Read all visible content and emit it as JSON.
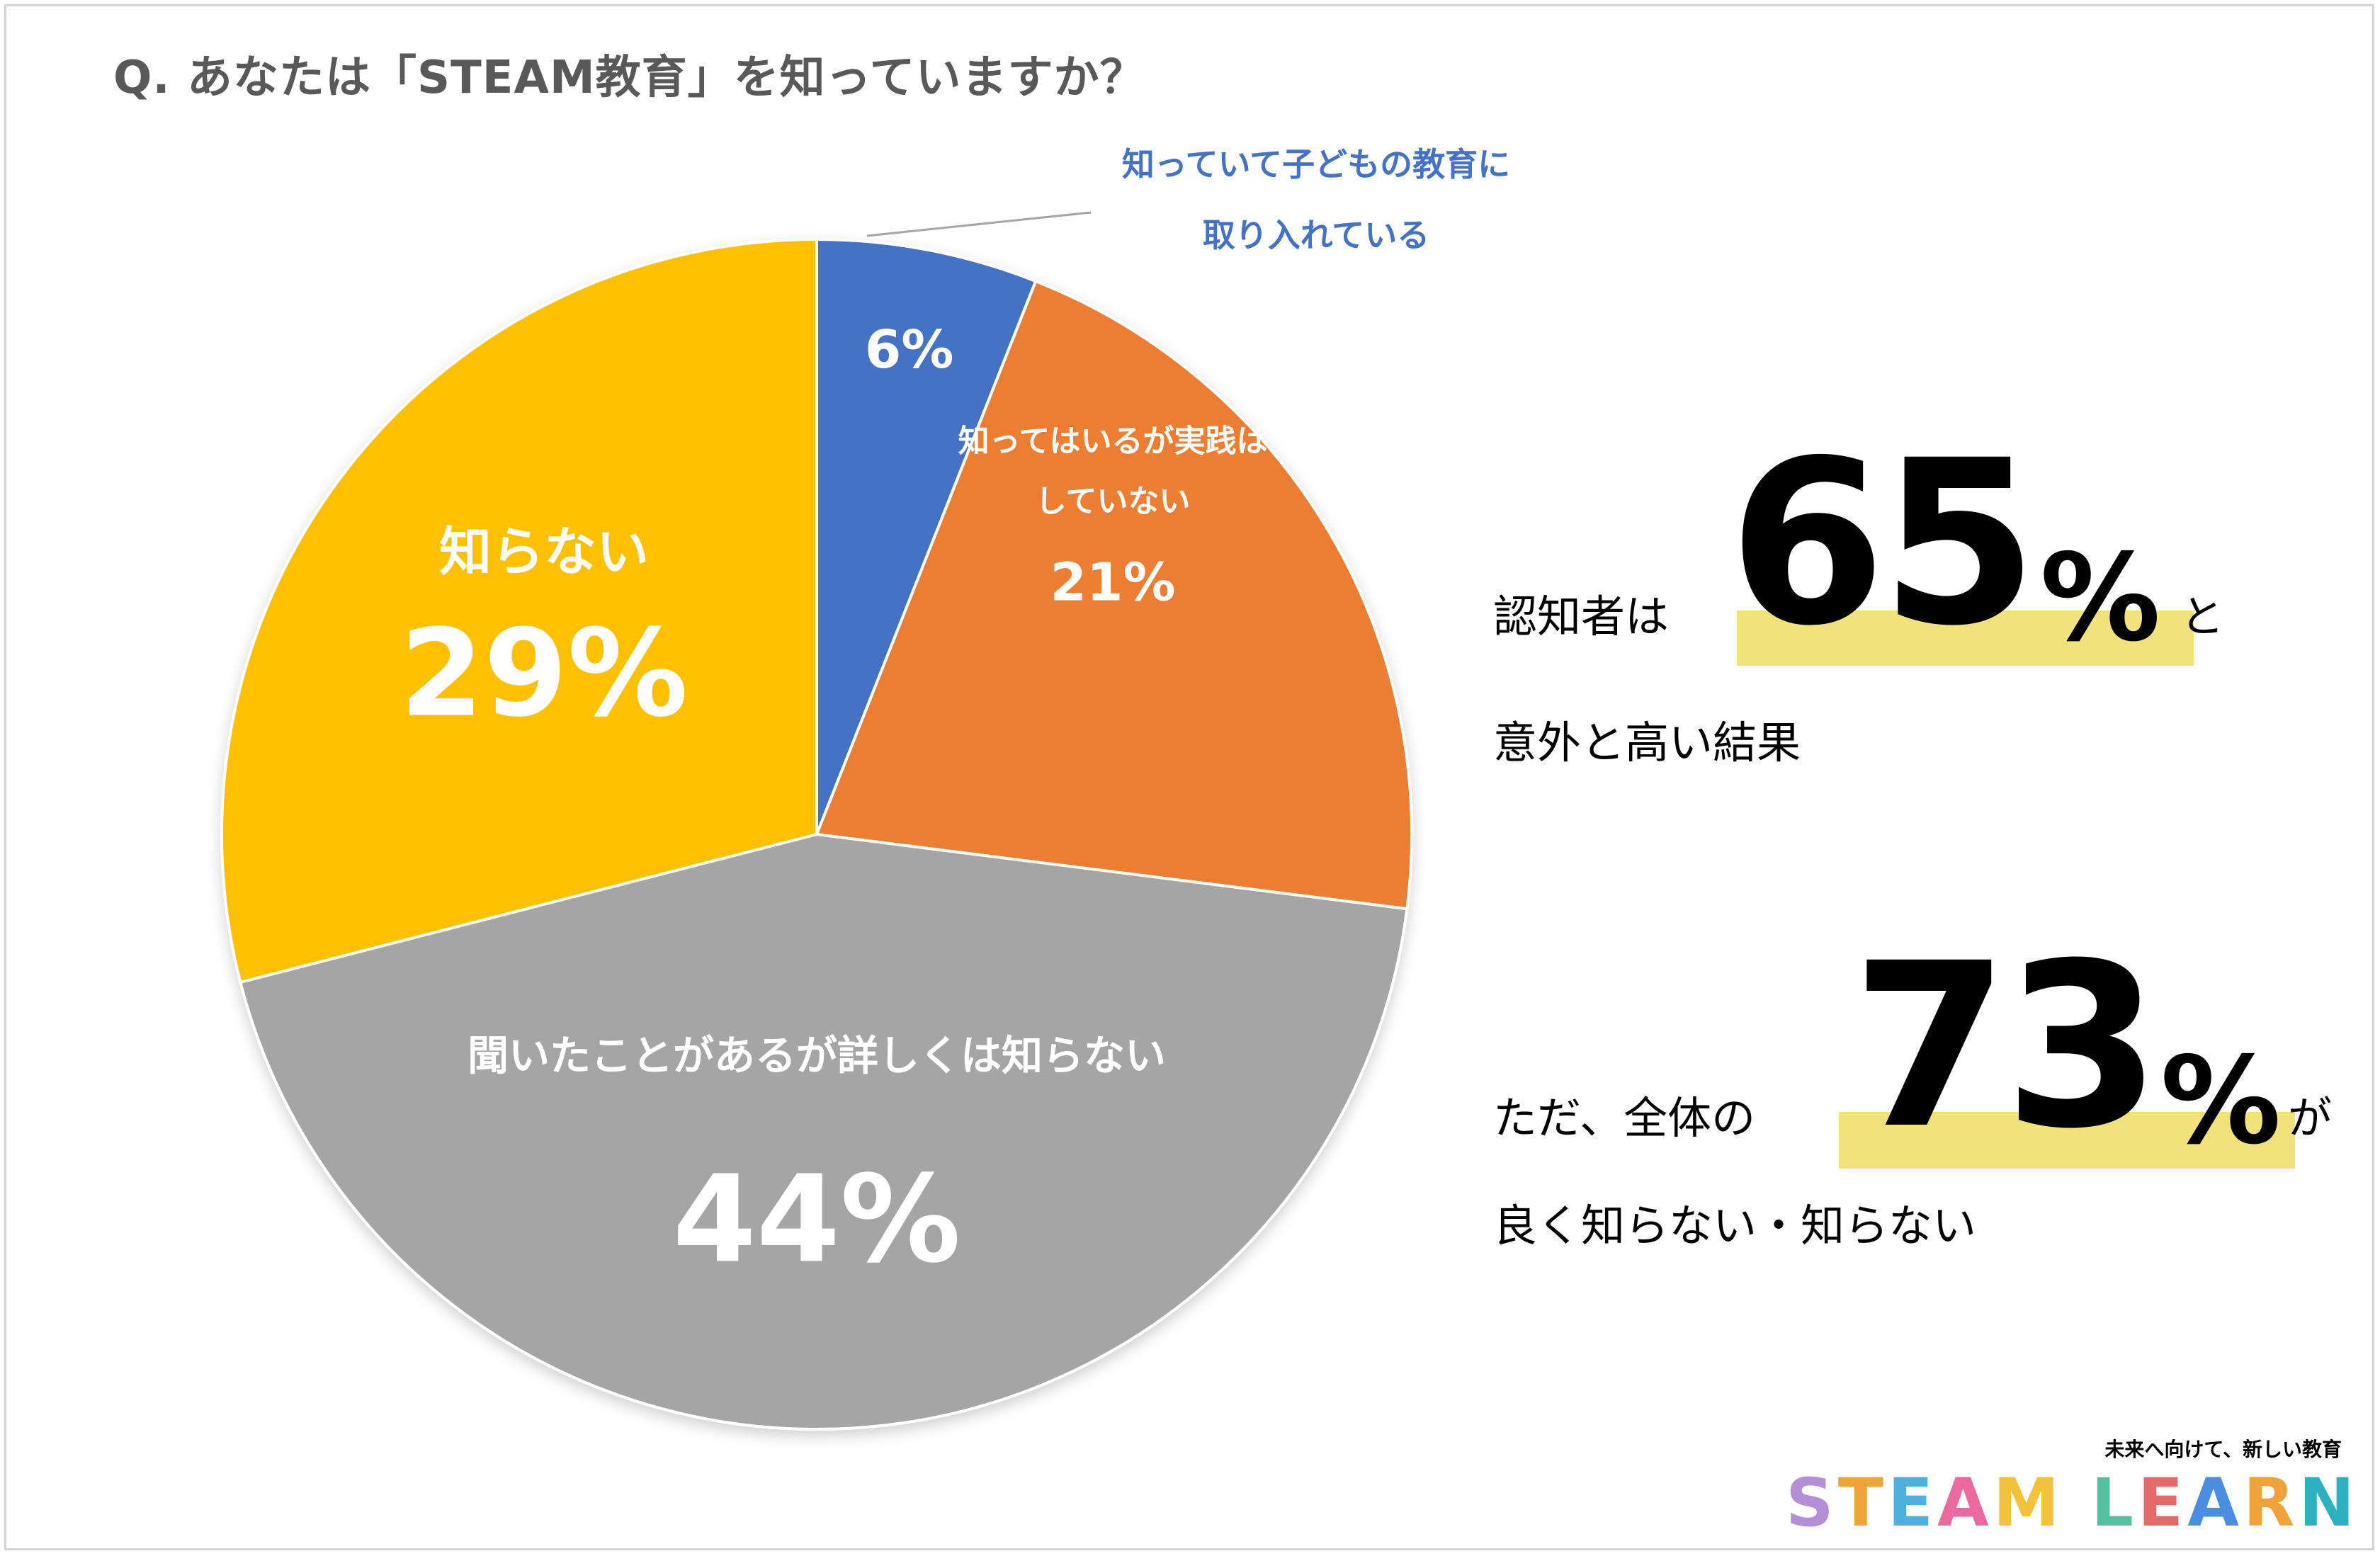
{
  "title": "Q. あなたは「STEAM教育」を知っていますか？",
  "chart_data": {
    "type": "pie",
    "title": "Q. あなたは「STEAM教育」を知っていますか？",
    "start": "12 o'clock, clockwise",
    "slices": [
      {
        "label": "知っていて子どもの教育に取り入れている",
        "label_lines": [
          "知っていて子どもの教育に",
          "取り入れている"
        ],
        "value": 6,
        "display": "6%",
        "color": "#4472c4"
      },
      {
        "label": "知ってはいるが実践はしていない",
        "label_lines": [
          "知ってはいるが実践は",
          "していない"
        ],
        "value": 21,
        "display": "21%",
        "color": "#ed7d31"
      },
      {
        "label": "聞いたことがあるが詳しくは知らない",
        "label_lines": [
          "聞いたことがあるが詳しくは知らない"
        ],
        "value": 44,
        "display": "44%",
        "color": "#a5a5a5"
      },
      {
        "label": "知らない",
        "label_lines": [
          "知らない"
        ],
        "value": 29,
        "display": "29%",
        "color": "#ffc000"
      }
    ]
  },
  "callouts": {
    "first": {
      "prefix": "認知者は",
      "big": "65",
      "pct": "%",
      "suffix": "と",
      "line2": "意外と高い結果"
    },
    "second": {
      "prefix": "ただ、全体の",
      "big": "73",
      "pct": "%",
      "suffix": "が",
      "line2": "良く知らない・知らない"
    }
  },
  "brand": {
    "tagline": "未来へ向けて、新しい教育",
    "letters": [
      "S",
      "T",
      "E",
      "A",
      "M",
      " ",
      "L",
      "E",
      "A",
      "R",
      "N"
    ],
    "letter_colors": [
      "#b48fd6",
      "#f0a23a",
      "#4fb0e0",
      "#ea6aa0",
      "#f2c23a",
      "#000000",
      "#56c0a0",
      "#e46a6a",
      "#4a8ee0",
      "#f0a23a",
      "#2fb0c0"
    ]
  },
  "colors": {
    "highlight": "#f2e27c",
    "outside_label": "#4472c4",
    "title": "#595959"
  }
}
